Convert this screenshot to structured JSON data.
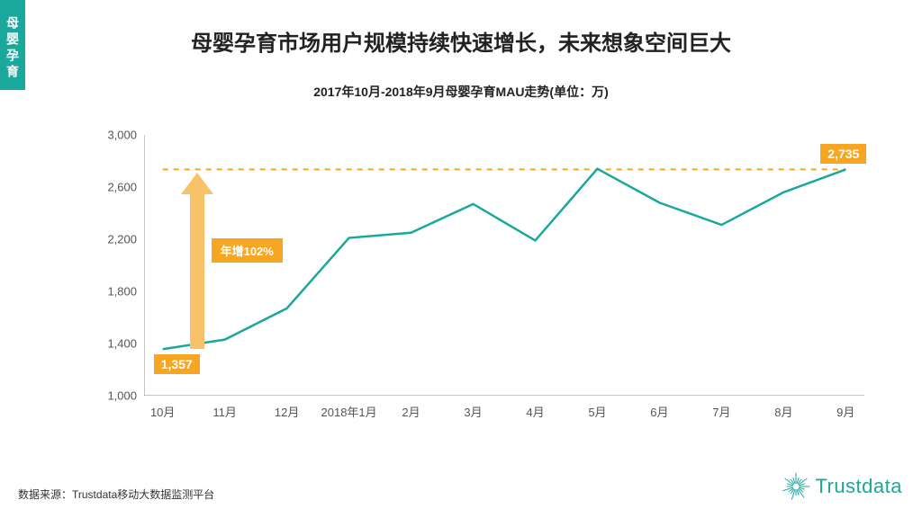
{
  "side_tab": "母婴孕育",
  "title": "母婴孕育市场用户规模持续快速增长，未来想象空间巨大",
  "subtitle": "2017年10月-2018年9月母婴孕育MAU走势(单位：万)",
  "source": "数据来源：Trustdata移动大数据监测平台",
  "logo_text": "Trustdata",
  "chart": {
    "type": "line",
    "background_color": "#ffffff",
    "x_labels": [
      "10月",
      "11月",
      "12月",
      "2018年1月",
      "2月",
      "3月",
      "4月",
      "5月",
      "6月",
      "7月",
      "8月",
      "9月"
    ],
    "values": [
      1357,
      1430,
      1670,
      2210,
      2250,
      2470,
      2190,
      2740,
      2480,
      2310,
      2560,
      2735
    ],
    "line_color": "#1aa79c",
    "line_width": 2.5,
    "ylim": [
      1000,
      3000
    ],
    "ytick_step": 400,
    "ytick_labels": [
      "1,000",
      "1,400",
      "1,800",
      "2,200",
      "2,600",
      "3,000"
    ],
    "axis_color": "#888888",
    "tick_font_size": 13,
    "tick_color": "#555555",
    "reference_line": {
      "y": 2735,
      "color": "#f6a623",
      "dash": "6 6",
      "width": 2
    },
    "start_badge": {
      "text": "1,357",
      "bg": "#f6a623",
      "text_color": "#ffffff"
    },
    "end_badge": {
      "text": "2,735",
      "bg": "#f6a623",
      "text_color": "#ffffff"
    },
    "arrow": {
      "label": "年增102%",
      "bg": "#f6a623",
      "shaft_color": "#f8c26b",
      "text_color": "#ffffff",
      "from_y": 1357,
      "to_y": 2735,
      "x_index": 0.55
    }
  },
  "colors": {
    "accent_teal": "#1aa79c",
    "accent_orange": "#f6a623",
    "arrow_fill": "#f8c26b"
  }
}
